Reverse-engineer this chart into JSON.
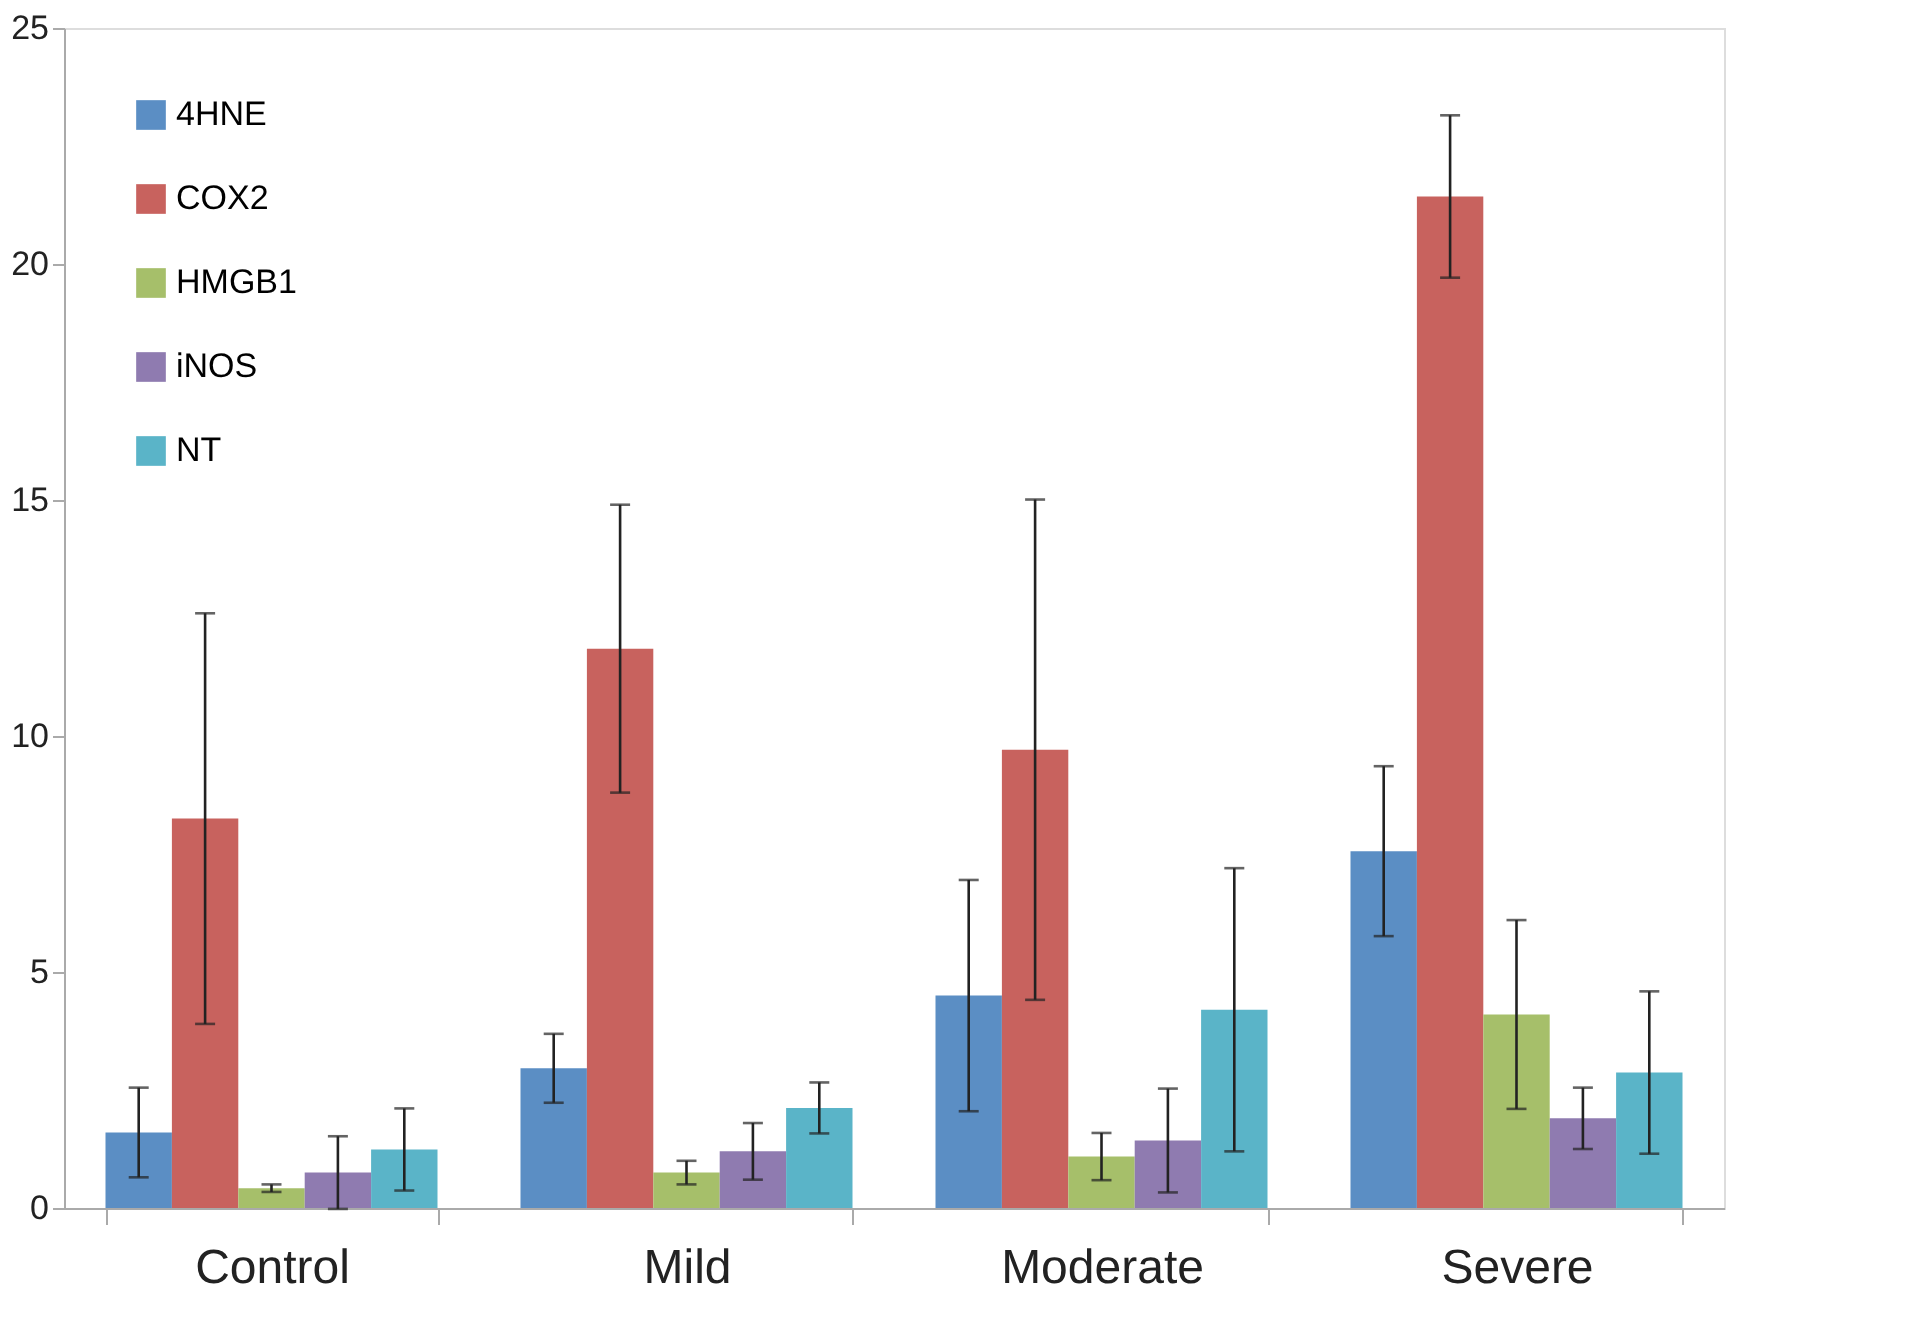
{
  "chart_data": {
    "type": "bar",
    "categories": [
      "Control",
      "Mild",
      "Moderate",
      "Severe"
    ],
    "series": [
      {
        "name": "4HNE",
        "color": "#5b8ec4",
        "values": [
          1.6,
          2.96,
          4.5,
          7.56
        ],
        "errors": [
          0.95,
          0.73,
          2.45,
          1.8
        ]
      },
      {
        "name": "COX2",
        "color": "#c8625e",
        "values": [
          8.25,
          11.85,
          9.71,
          21.43
        ],
        "errors": [
          4.35,
          3.05,
          5.3,
          1.72
        ]
      },
      {
        "name": "HMGB1",
        "color": "#a6bf6a",
        "values": [
          0.42,
          0.75,
          1.09,
          4.1
        ],
        "errors": [
          0.08,
          0.25,
          0.5,
          2.0
        ]
      },
      {
        "name": "iNOS",
        "color": "#8f7bb0",
        "values": [
          0.75,
          1.2,
          1.43,
          1.9
        ],
        "errors": [
          0.77,
          0.6,
          1.1,
          0.65
        ]
      },
      {
        "name": "NT",
        "color": "#5ab4c8",
        "values": [
          1.24,
          2.12,
          4.2,
          2.87
        ],
        "errors": [
          0.87,
          0.54,
          3.0,
          1.72
        ]
      }
    ],
    "ylim": [
      0,
      25
    ],
    "yticks": [
      0,
      5,
      10,
      15,
      20,
      25
    ],
    "grid": false,
    "legend": "top left"
  }
}
